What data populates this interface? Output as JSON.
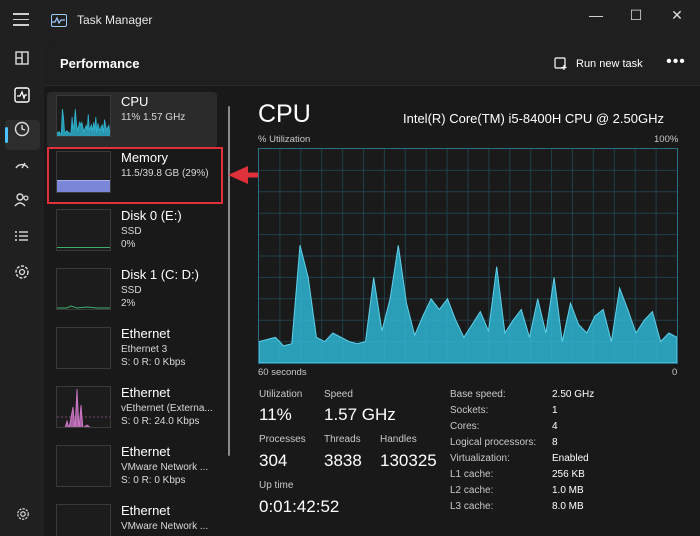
{
  "window": {
    "title": "Task Manager",
    "minimize": "—",
    "maximize": "☐",
    "close": "✕"
  },
  "header": {
    "title": "Performance",
    "run_task_label": "Run new task",
    "more_label": "•••"
  },
  "colors": {
    "accent": "#4cc2ff",
    "cpu_graph": "#2fb6d3",
    "memory_bar": "#7b86d9",
    "ethernet_graph": "#d77bd0",
    "highlight": "#e0303a"
  },
  "rail": [
    "menu-icon",
    "processes-icon",
    "performance-icon",
    "app-history-icon",
    "startup-icon",
    "users-icon",
    "details-icon",
    "services-icon",
    "settings-icon"
  ],
  "devices": [
    {
      "name": "CPU",
      "line1": "11%  1.57 GHz",
      "line2": ""
    },
    {
      "name": "Memory",
      "line1": "11.5/39.8 GB (29%)",
      "line2": "",
      "usage": 0.29
    },
    {
      "name": "Disk 0 (E:)",
      "line1": "SSD",
      "line2": "0%"
    },
    {
      "name": "Disk 1 (C: D:)",
      "line1": "SSD",
      "line2": "2%"
    },
    {
      "name": "Ethernet",
      "line1": "Ethernet 3",
      "line2": "S: 0  R: 0 Kbps"
    },
    {
      "name": "Ethernet",
      "line1": "vEthernet (Externa...",
      "line2": "S: 0  R: 24.0 Kbps"
    },
    {
      "name": "Ethernet",
      "line1": "VMware Network ...",
      "line2": "S: 0  R: 0 Kbps"
    },
    {
      "name": "Ethernet",
      "line1": "VMware Network ...",
      "line2": ""
    }
  ],
  "detail": {
    "title": "CPU",
    "model": "Intel(R) Core(TM) i5-8400H CPU @ 2.50GHz",
    "util_label": "% Utilization",
    "max_label": "100%",
    "time_label": "60 seconds",
    "min_label": "0",
    "utilization_label": "Utilization",
    "utilization": "11%",
    "speed_label": "Speed",
    "speed": "1.57 GHz",
    "processes_label": "Processes",
    "processes": "304",
    "threads_label": "Threads",
    "threads": "3838",
    "handles_label": "Handles",
    "handles": "130325",
    "uptime_label": "Up time",
    "uptime": "0:01:42:52",
    "specs": [
      {
        "key": "Base speed:",
        "value": "2.50 GHz"
      },
      {
        "key": "Sockets:",
        "value": "1"
      },
      {
        "key": "Cores:",
        "value": "4"
      },
      {
        "key": "Logical processors:",
        "value": "8"
      },
      {
        "key": "Virtualization:",
        "value": "Enabled"
      },
      {
        "key": "L1 cache:",
        "value": "256 KB"
      },
      {
        "key": "L2 cache:",
        "value": "1.0 MB"
      },
      {
        "key": "L3 cache:",
        "value": "8.0 MB"
      }
    ],
    "graph_values": [
      10,
      11,
      12,
      8,
      9,
      55,
      40,
      12,
      10,
      14,
      12,
      10,
      9,
      10,
      40,
      15,
      30,
      55,
      28,
      13,
      22,
      30,
      25,
      30,
      20,
      12,
      18,
      24,
      15,
      45,
      14,
      20,
      25,
      12,
      30,
      14,
      40,
      10,
      28,
      18,
      14,
      22,
      25,
      10,
      35,
      25,
      14,
      20,
      24,
      10,
      14,
      12
    ]
  }
}
